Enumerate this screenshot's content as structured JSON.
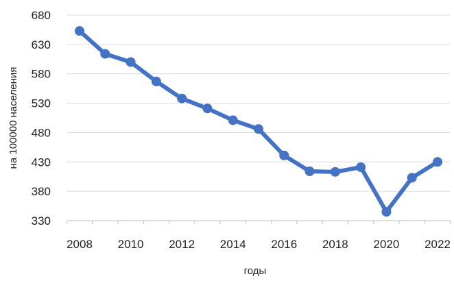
{
  "chart_data": {
    "type": "line",
    "title": "",
    "xlabel": "годы",
    "ylabel": "на 100000 населения",
    "x": [
      2008,
      2009,
      2010,
      2011,
      2012,
      2013,
      2014,
      2015,
      2016,
      2017,
      2018,
      2019,
      2020,
      2021,
      2022
    ],
    "series": [
      {
        "values": [
          653,
          614,
          600,
          567,
          538,
          521,
          501,
          486,
          441,
          414,
          413,
          421,
          345,
          403,
          430
        ],
        "color": "#4472c4"
      }
    ],
    "x_ticks": [
      "2008",
      "2010",
      "2012",
      "2014",
      "2016",
      "2018",
      "2020",
      "2022"
    ],
    "y_ticks": [
      "330",
      "380",
      "430",
      "480",
      "530",
      "580",
      "630",
      "680"
    ],
    "ylim": [
      330,
      680
    ],
    "xlim": [
      2008,
      2022
    ],
    "grid": "horizontal",
    "legend": "none"
  }
}
